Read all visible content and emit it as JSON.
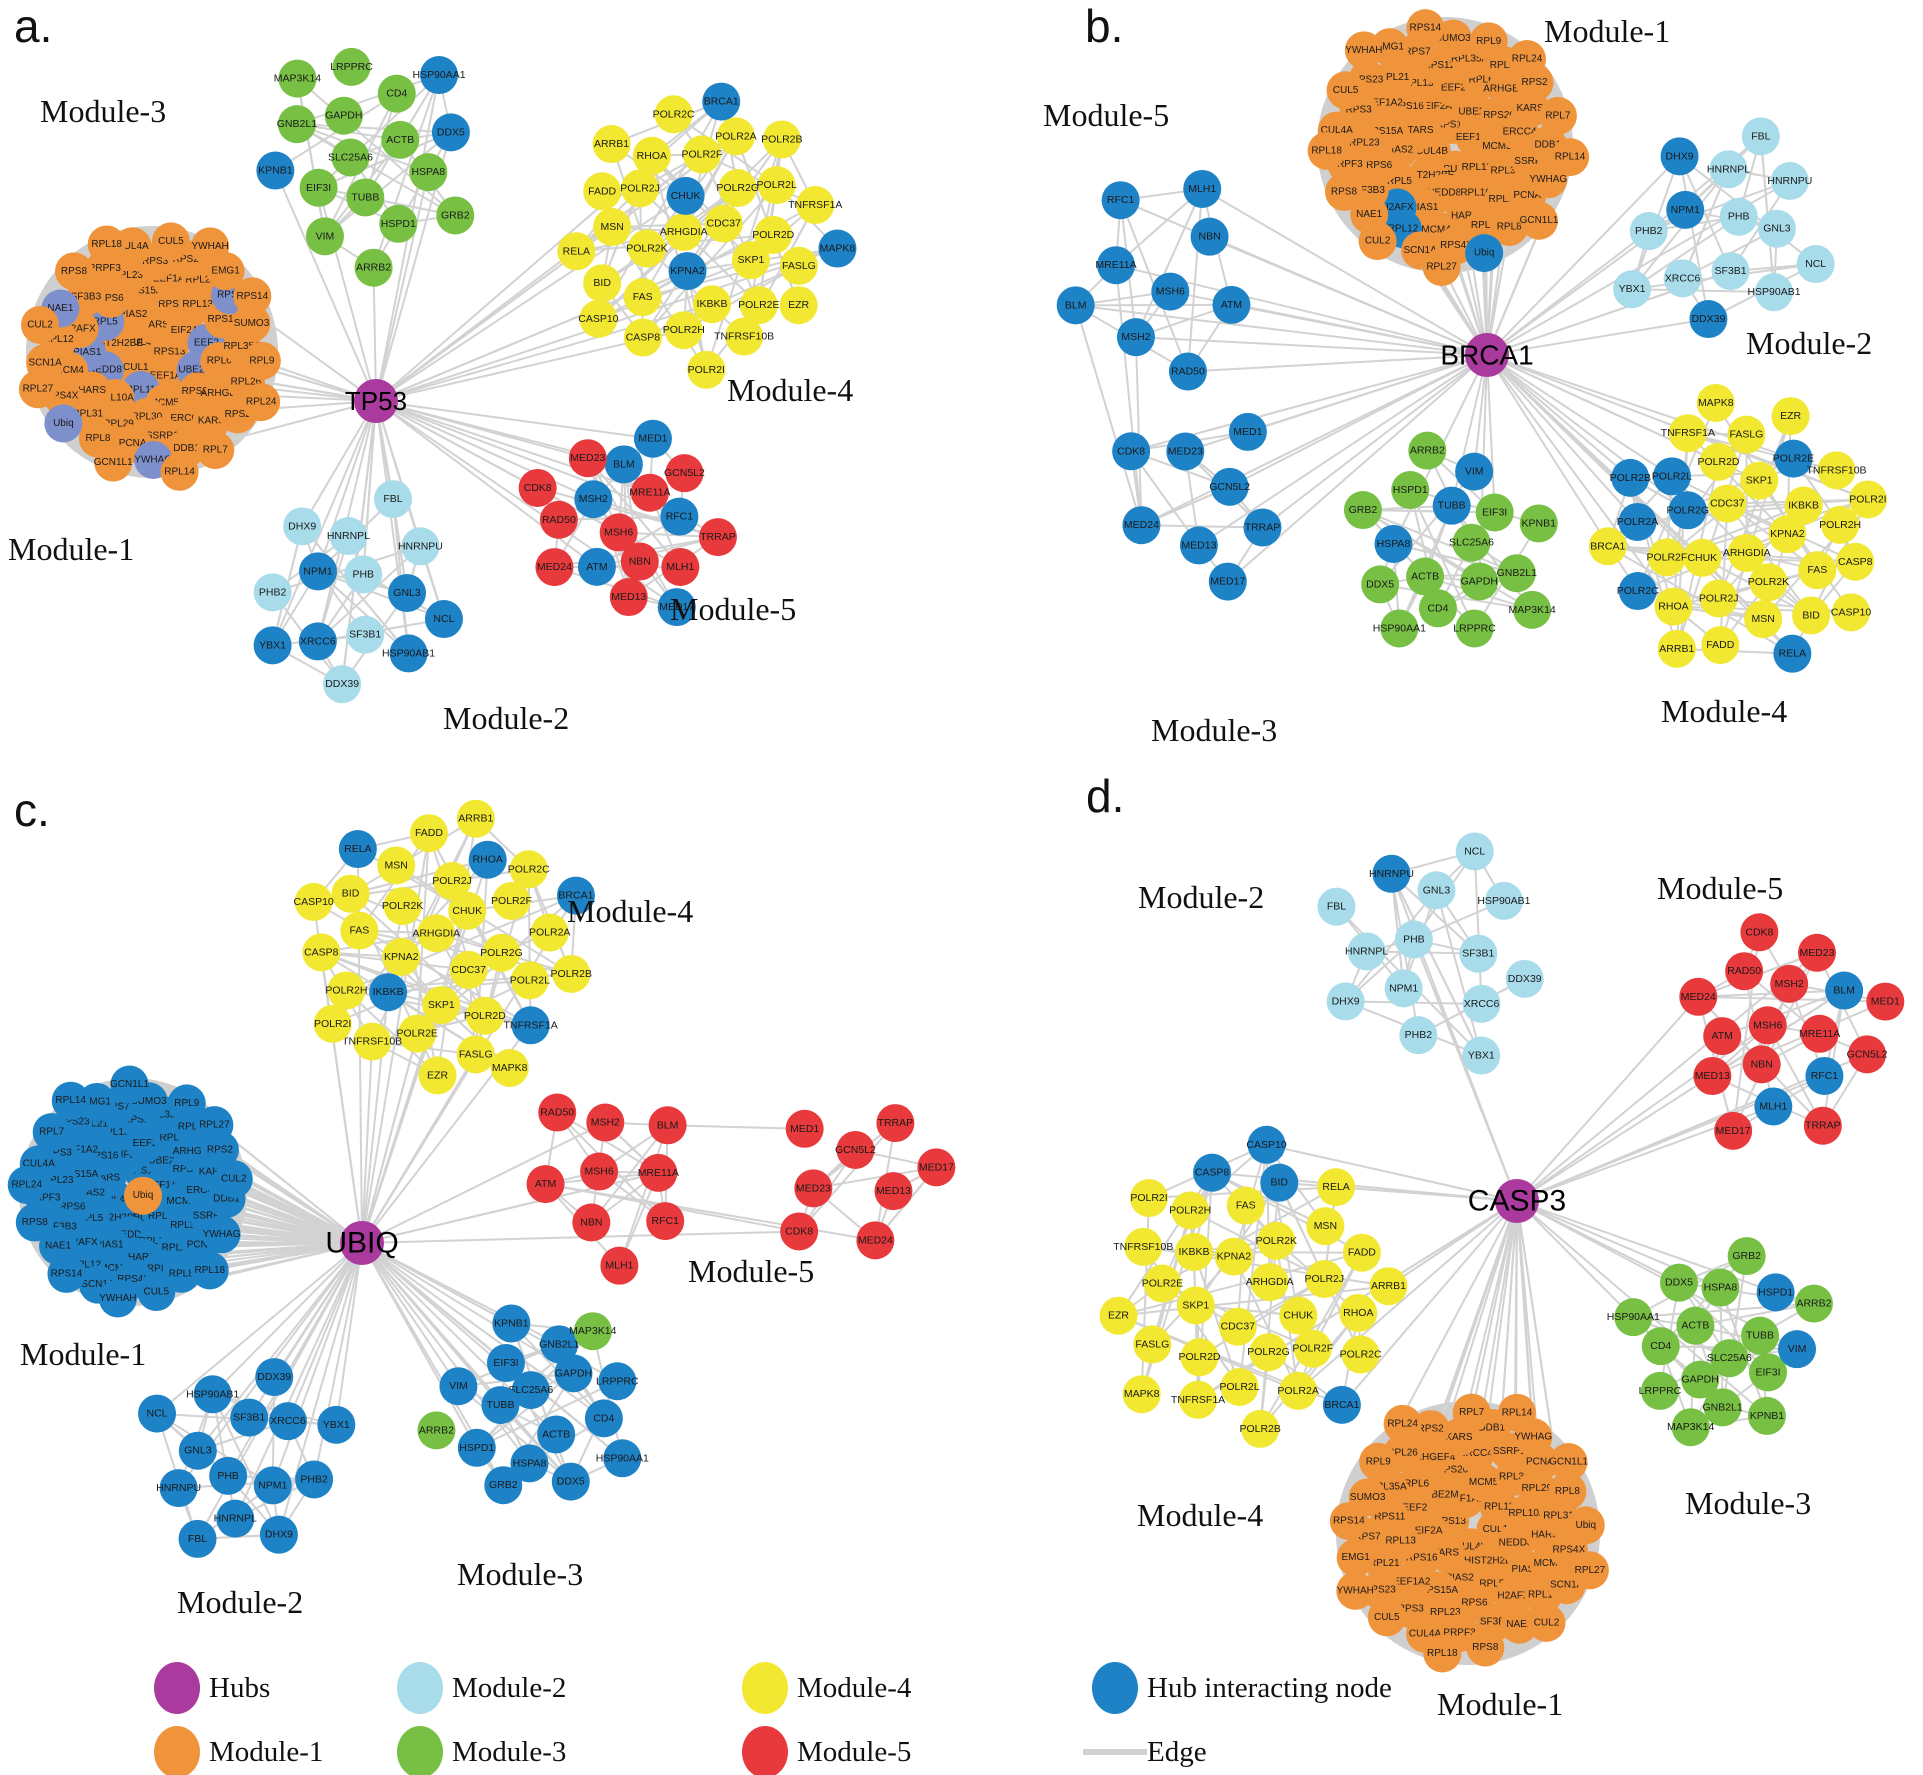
{
  "colors": {
    "hub": "#AA3A9D",
    "module1": "#F0943C",
    "module2": "#A9DCEB",
    "module3": "#77C043",
    "module4": "#F2E831",
    "module5": "#E8393C",
    "interact": "#1D82C6",
    "slate": "#7E90CC",
    "edge": "#D2D2D2",
    "dense_fill": "#CFCFCF",
    "node_text": "#1A1A1A"
  },
  "node_sets": {
    "module1": [
      "CUL4B",
      "RPS13",
      "CUL1",
      "TARS",
      "EEF1A1",
      "HIST2H2BE",
      "EIF2A",
      "RPL11",
      "PIAS2",
      "UBE2M",
      "NEDD8",
      "RPS16",
      "MCM5",
      "RPL5",
      "EEF2",
      "RPL10A",
      "RPS15A",
      "RPS20",
      "PIAS1",
      "RPL13",
      "RPL30",
      "RPS6",
      "RPL6",
      "HARS",
      "EEF1A2",
      "ERCC4",
      "H2AFX",
      "RPS11",
      "RPL29",
      "RPL23",
      "ARHGEF4",
      "MCM4",
      "RPL21",
      "SSRP1",
      "SF3B3",
      "RPL35A",
      "RPL31",
      "RPS3",
      "KARS",
      "RPL12",
      "RPS7",
      "PCNA",
      "PRPF3",
      "RPL26",
      "RPS4X",
      "RPS23",
      "DDB1",
      "NAE1",
      "SUMO3",
      "RPL8",
      "CUL4A",
      "RPS2",
      "SCN1A",
      "EMG1",
      "YWHAG",
      "RPS8",
      "RPL9",
      "Ubiq",
      "CUL5",
      "RPL7",
      "CUL2",
      "RPS14",
      "GCN1L1",
      "RPL18",
      "RPL24",
      "RPL27",
      "YWHAH",
      "RPL14"
    ],
    "module2": [
      "PHB",
      "SF3B1",
      "NPM1",
      "GNL3",
      "XRCC6",
      "HNRNPL",
      "HSP90AB1",
      "PHB2",
      "HNRNPU",
      "DDX39",
      "DHX9",
      "NCL",
      "YBX1",
      "FBL"
    ],
    "module3": [
      "SLC25A6",
      "ACTB",
      "TUBB",
      "GAPDH",
      "HSPA8",
      "EIF3I",
      "CD4",
      "HSPD1",
      "GNB2L1",
      "DDX5",
      "VIM",
      "LRPPRC",
      "GRB2",
      "KPNB1",
      "HSP90AA1",
      "ARRB2",
      "MAP3K14"
    ],
    "module4": [
      "ARHGDIA",
      "CDC37",
      "KPNA2",
      "CHUK",
      "SKP1",
      "POLR2K",
      "POLR2G",
      "IKBKB",
      "POLR2J",
      "POLR2D",
      "FAS",
      "POLR2F",
      "POLR2E",
      "MSN",
      "POLR2L",
      "POLR2H",
      "RHOA",
      "FASLG",
      "BID",
      "POLR2A",
      "TNFRSF10B",
      "FADD",
      "TNFRSF1A",
      "CASP8",
      "POLR2C",
      "EZR",
      "RELA",
      "POLR2B",
      "POLR2I",
      "ARRB1",
      "MAPK8",
      "CASP10",
      "BRCA1"
    ],
    "module5": [
      "MSH6",
      "MRE11A",
      "NBN",
      "MSH2",
      "RFC1",
      "ATM",
      "BLM",
      "MLH1",
      "RAD50",
      "GCN5L2",
      "MED13",
      "MED23",
      "TRRAP",
      "MED24",
      "MED1",
      "MED17",
      "CDK8"
    ]
  },
  "panels": {
    "a": {
      "letter": "a.",
      "hub": "TP53",
      "modules": {
        "module3": {
          "label": "Module-3",
          "set": "module3",
          "blue": [
            "DDX5",
            "KPNB1",
            "HSP90AA1"
          ]
        },
        "module1": {
          "label": "Module-1",
          "set": "module1",
          "blue": [
            "RPL11",
            "RPL5",
            "EEF2",
            "UBE2M",
            "NEDD8",
            "PIAS1",
            "RPS7",
            "NAE1",
            "YWHAG",
            "Ubiq"
          ],
          "blue_color": "slate"
        },
        "module4": {
          "label": "Module-4",
          "set": "module4",
          "blue": [
            "KPNA2",
            "CHUK",
            "MAPK8",
            "BRCA1"
          ]
        },
        "module2": {
          "label": "Module-2",
          "set": "module2",
          "blue": [
            "XRCC6",
            "NPM1",
            "HSP90AB1",
            "GNL3",
            "NCL",
            "YBX1"
          ]
        },
        "module5": {
          "label": "Module-5",
          "set": "module5",
          "blue": [
            "MSH2",
            "MED17",
            "MED1",
            "RFC1",
            "ATM",
            "BLM"
          ]
        }
      }
    },
    "b": {
      "letter": "b.",
      "hub": "BRCA1",
      "modules": {
        "module5": {
          "label": "Module-5",
          "set": "module5",
          "all_blue_except": []
        },
        "module1": {
          "label": "Module-1",
          "set": "module1",
          "blue": [
            "H2AFX",
            "Ubiq",
            "RPL12"
          ]
        },
        "module2": {
          "label": "Module-2",
          "set": "module2",
          "blue": [
            "NPM1",
            "DHX9",
            "DDX39"
          ]
        },
        "module4": {
          "label": "Module-4",
          "set": "module4",
          "blue": [
            "POLR2A",
            "POLR2B",
            "POLR2C",
            "POLR2E",
            "POLR2G",
            "POLR2L",
            "RELA"
          ]
        },
        "module3": {
          "label": "Module-3",
          "set": "module3",
          "blue": [
            "TUBB",
            "HSPA8",
            "VIM"
          ]
        }
      }
    },
    "c": {
      "letter": "c.",
      "hub": "UBIQ",
      "modules": {
        "module4": {
          "label": "Module-4",
          "set": "module4",
          "blue": [
            "BRCA1",
            "IKBKB",
            "RELA",
            "TNFRSF1A",
            "RHOA"
          ]
        },
        "module5": {
          "label": "Module-5",
          "set": "module5",
          "blue": []
        },
        "module1": {
          "label": "Module-1",
          "set": "module1",
          "all_blue_except": [
            "Ubiq"
          ],
          "orange": [
            "Ubiq"
          ],
          "center_node": "Ubiq"
        },
        "module2": {
          "label": "Module-2",
          "set": "module2",
          "all_blue_except": []
        },
        "module3": {
          "label": "Module-3",
          "set": "module3",
          "all_blue_except": [
            "ARRB2",
            "MAP3K14"
          ]
        }
      }
    },
    "d": {
      "letter": "d.",
      "hub": "CASP3",
      "modules": {
        "module2": {
          "label": "Module-2",
          "set": "module2",
          "blue": [
            "HNRNPU"
          ]
        },
        "module5": {
          "label": "Module-5",
          "set": "module5",
          "blue": [
            "RFC1",
            "MLH1",
            "BLM"
          ]
        },
        "module4": {
          "label": "Module-4",
          "set": "module4",
          "blue": [
            "BRCA1",
            "CASP10",
            "CASP8",
            "BID"
          ]
        },
        "module3": {
          "label": "Module-3",
          "set": "module3",
          "blue": [
            "VIM",
            "HSPD1"
          ]
        },
        "module1": {
          "label": "Module-1",
          "set": "module1",
          "blue": []
        }
      }
    }
  },
  "legend": {
    "items": [
      {
        "label": "Hubs",
        "color_key": "hub"
      },
      {
        "label": "Module-1",
        "color_key": "module1"
      },
      {
        "label": "Module-2",
        "color_key": "module2"
      },
      {
        "label": "Module-3",
        "color_key": "module3"
      },
      {
        "label": "Module-4",
        "color_key": "module4"
      },
      {
        "label": "Module-5",
        "color_key": "module5"
      },
      {
        "label": "Hub interacting node",
        "color_key": "interact"
      },
      {
        "label": "Edge",
        "color_key": "edge",
        "shape": "line"
      }
    ]
  }
}
